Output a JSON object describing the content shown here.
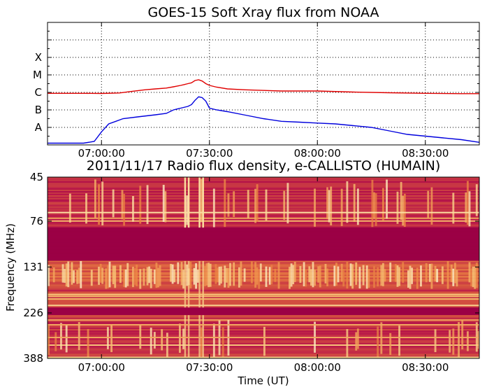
{
  "chart_data": [
    {
      "type": "line",
      "title": "GOES-15 Soft Xray flux from NOAA",
      "xlabel": "",
      "ylabel": "",
      "x_ticks": [
        "07:00:00",
        "07:30:00",
        "08:00:00",
        "08:30:00"
      ],
      "xlim": [
        "06:45:00",
        "08:45:00"
      ],
      "y_ticks": [
        "A",
        "B",
        "C",
        "M",
        "X"
      ],
      "ylim": [
        "",
        ""
      ],
      "grid": true,
      "colors": {
        "long": "#e00000",
        "short": "#0000dd"
      },
      "series": [
        {
          "name": "",
          "color": "#e00000",
          "x": [
            "06:45",
            "06:55",
            "07:00",
            "07:05",
            "07:08",
            "07:12",
            "07:15",
            "07:18",
            "07:20",
            "07:22",
            "07:23",
            "07:24",
            "07:25",
            "07:26",
            "07:27",
            "07:28",
            "07:29",
            "07:30",
            "07:32",
            "07:35",
            "07:40",
            "07:50",
            "08:00",
            "08:10",
            "08:20",
            "08:30",
            "08:40",
            "08:45"
          ],
          "values": [
            2.95,
            2.95,
            2.94,
            2.97,
            3.05,
            3.15,
            3.2,
            3.25,
            3.32,
            3.4,
            3.45,
            3.5,
            3.55,
            3.68,
            3.72,
            3.65,
            3.5,
            3.4,
            3.3,
            3.2,
            3.15,
            3.08,
            3.08,
            3.02,
            2.98,
            2.95,
            2.93,
            2.93
          ]
        },
        {
          "name": "",
          "color": "#0000dd",
          "x": [
            "06:45",
            "06:55",
            "06:58",
            "07:00",
            "07:02",
            "07:04",
            "07:06",
            "07:10",
            "07:15",
            "07:18",
            "07:20",
            "07:22",
            "07:24",
            "07:25",
            "07:26",
            "07:27",
            "07:28",
            "07:29",
            "07:30",
            "07:32",
            "07:35",
            "07:40",
            "07:45",
            "07:50",
            "07:55",
            "08:00",
            "08:05",
            "08:10",
            "08:15",
            "08:20",
            "08:25",
            "08:30",
            "08:35",
            "08:40",
            "08:45"
          ],
          "values": [
            0.1,
            0.1,
            0.2,
            0.75,
            1.2,
            1.35,
            1.5,
            1.6,
            1.72,
            1.8,
            2.0,
            2.1,
            2.2,
            2.3,
            2.55,
            2.75,
            2.7,
            2.5,
            2.1,
            2.0,
            1.9,
            1.7,
            1.5,
            1.35,
            1.3,
            1.25,
            1.2,
            1.1,
            1.0,
            0.8,
            0.6,
            0.5,
            0.4,
            0.3,
            0.15
          ]
        }
      ]
    },
    {
      "type": "heatmap",
      "title": "2011/11/17  Radio flux density, e-CALLISTO (HUMAIN)",
      "xlabel": "Time (UT)",
      "ylabel": "Frequency (MHz)",
      "x_ticks": [
        "07:00:00",
        "07:30:00",
        "08:00:00",
        "08:30:00"
      ],
      "xlim": [
        "06:45:00",
        "08:45:00"
      ],
      "y_ticks": [
        "45",
        "76",
        "131",
        "226",
        "388"
      ],
      "ylim": [
        45,
        388
      ],
      "y_scale": "inverted-log",
      "colormap": [
        "#9b0045",
        "#b8164a",
        "#d4503f",
        "#ee8a46",
        "#f8c878",
        "#fdf2c8"
      ],
      "bands": [
        {
          "from": 82,
          "to": 122,
          "level": 0.0
        },
        {
          "from": 46,
          "to": 82,
          "level": 0.25
        },
        {
          "from": 122,
          "to": 170,
          "level": 0.45
        },
        {
          "from": 170,
          "to": 245,
          "level": 0.35
        },
        {
          "from": 245,
          "to": 388,
          "level": 0.28
        }
      ]
    }
  ]
}
